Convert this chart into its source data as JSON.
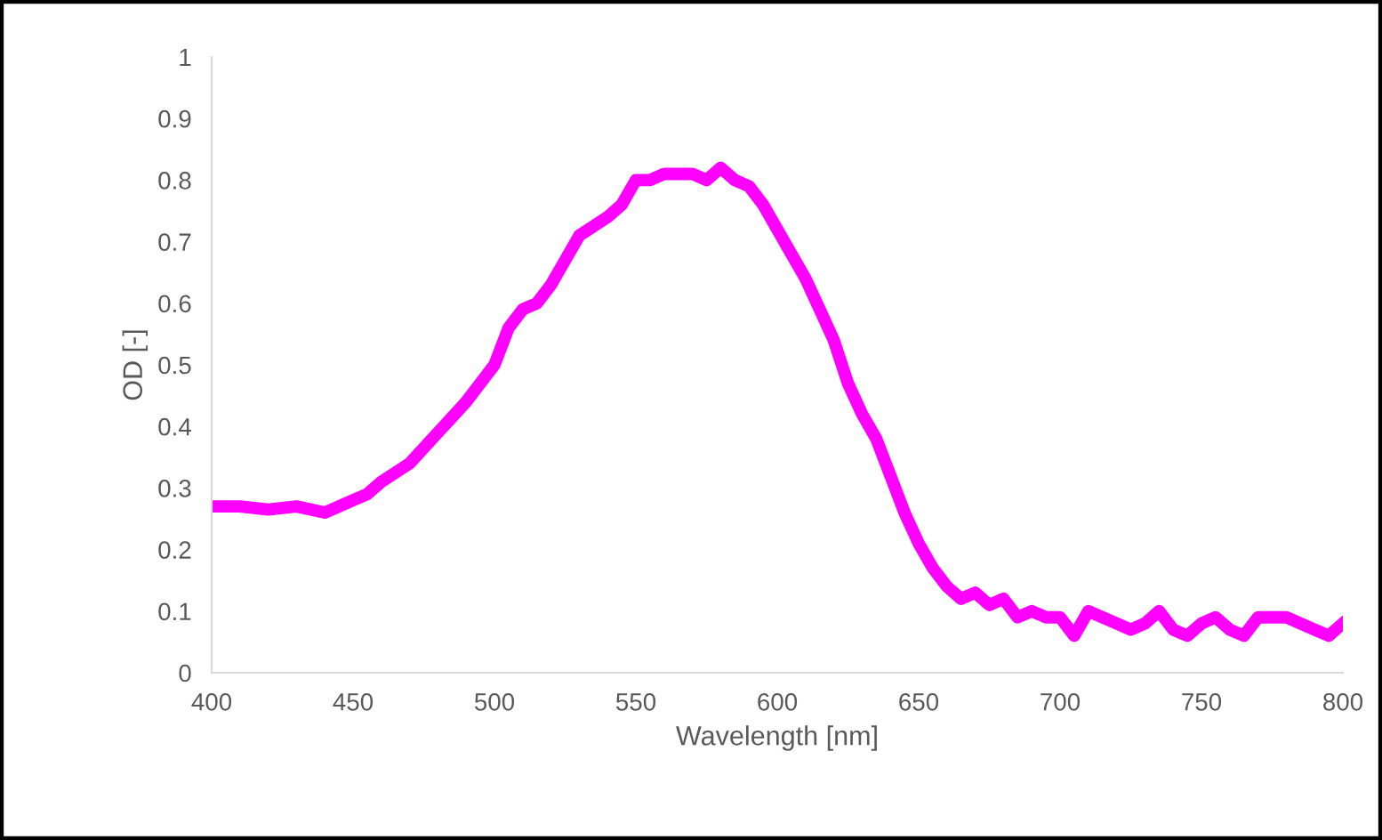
{
  "chart_data": {
    "type": "line",
    "xlabel": "Wavelength [nm]",
    "ylabel": "OD [-]",
    "xlim": [
      400,
      800
    ],
    "xticks": [
      400,
      450,
      500,
      550,
      600,
      650,
      700,
      750,
      800
    ],
    "ylim": [
      0,
      1
    ],
    "yticks": [
      0,
      0.1,
      0.2,
      0.3,
      0.4,
      0.5,
      0.6,
      0.7,
      0.8,
      0.9,
      1
    ],
    "grid": false,
    "legend": false,
    "marker": "none",
    "line_style": "solid",
    "series": [
      {
        "color": "#ff00ff",
        "x": [
          400,
          410,
          420,
          430,
          440,
          450,
          455,
          460,
          470,
          480,
          490,
          500,
          505,
          510,
          515,
          520,
          525,
          530,
          540,
          545,
          550,
          555,
          560,
          570,
          575,
          580,
          585,
          590,
          595,
          600,
          605,
          610,
          615,
          620,
          625,
          630,
          635,
          640,
          645,
          650,
          655,
          660,
          665,
          670,
          675,
          680,
          685,
          690,
          695,
          700,
          705,
          710,
          720,
          725,
          730,
          735,
          740,
          745,
          750,
          755,
          760,
          765,
          770,
          780,
          790,
          795,
          800
        ],
        "values": [
          0.27,
          0.27,
          0.265,
          0.27,
          0.26,
          0.28,
          0.29,
          0.31,
          0.34,
          0.39,
          0.44,
          0.5,
          0.56,
          0.59,
          0.6,
          0.63,
          0.67,
          0.71,
          0.74,
          0.76,
          0.8,
          0.8,
          0.81,
          0.81,
          0.8,
          0.82,
          0.8,
          0.79,
          0.76,
          0.72,
          0.68,
          0.64,
          0.59,
          0.54,
          0.47,
          0.42,
          0.38,
          0.32,
          0.26,
          0.21,
          0.17,
          0.14,
          0.12,
          0.13,
          0.11,
          0.12,
          0.09,
          0.1,
          0.09,
          0.09,
          0.06,
          0.1,
          0.08,
          0.07,
          0.08,
          0.1,
          0.07,
          0.06,
          0.08,
          0.09,
          0.07,
          0.06,
          0.09,
          0.09,
          0.07,
          0.06,
          0.08
        ]
      }
    ]
  }
}
